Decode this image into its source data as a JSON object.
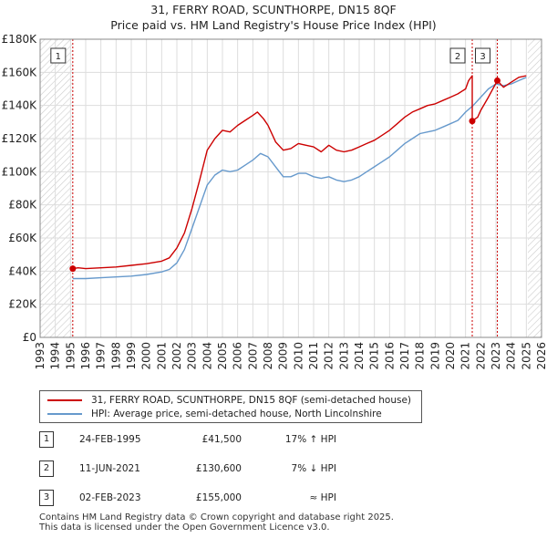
{
  "title_line1": "31, FERRY ROAD, SCUNTHORPE, DN15 8QF",
  "title_line2": "Price paid vs. HM Land Registry's House Price Index (HPI)",
  "colors": {
    "property": "#cc0000",
    "hpi": "#6699cc",
    "hatch": "#cccccc",
    "grid": "#dddddd"
  },
  "chart_data": {
    "type": "line",
    "title": "Price paid vs. HM Land Registry's House Price Index (HPI)",
    "xlabel": "",
    "ylabel": "",
    "xlim": [
      1993,
      2026
    ],
    "ylim": [
      0,
      180000
    ],
    "y_ticks": [
      0,
      20000,
      40000,
      60000,
      80000,
      100000,
      120000,
      140000,
      160000,
      180000
    ],
    "y_tick_labels": [
      "£0",
      "£20K",
      "£40K",
      "£60K",
      "£80K",
      "£100K",
      "£120K",
      "£140K",
      "£160K",
      "£180K"
    ],
    "x_ticks": [
      1993,
      1994,
      1995,
      1996,
      1997,
      1998,
      1999,
      2000,
      2001,
      2002,
      2003,
      2004,
      2005,
      2006,
      2007,
      2008,
      2009,
      2010,
      2011,
      2012,
      2013,
      2014,
      2015,
      2016,
      2017,
      2018,
      2019,
      2020,
      2021,
      2022,
      2023,
      2024,
      2025,
      2026
    ],
    "hatched_regions": [
      [
        1993,
        1995.15
      ],
      [
        2025.1,
        2026
      ]
    ],
    "series": [
      {
        "name": "31, FERRY ROAD, SCUNTHORPE, DN15 8QF (semi-detached house)",
        "color": "#cc0000",
        "x": [
          1995.15,
          1995.5,
          1996,
          1997,
          1998,
          1999,
          2000,
          2001,
          2001.5,
          2002,
          2002.5,
          2003,
          2003.5,
          2004,
          2004.5,
          2005,
          2005.5,
          2006,
          2006.5,
          2007,
          2007.3,
          2007.7,
          2008,
          2008.5,
          2009,
          2009.5,
          2010,
          2010.5,
          2011,
          2011.5,
          2012,
          2012.5,
          2013,
          2013.5,
          2014,
          2014.5,
          2015,
          2015.5,
          2016,
          2016.5,
          2017,
          2017.5,
          2018,
          2018.5,
          2019,
          2019.5,
          2020,
          2020.5,
          2021,
          2021.2,
          2021.44,
          2021.44,
          2021.8,
          2022,
          2022.5,
          2023.09,
          2023.5,
          2024,
          2024.5,
          2025
        ],
        "values": [
          41500,
          42000,
          41500,
          42000,
          42500,
          43500,
          44500,
          46000,
          48000,
          54000,
          63000,
          78000,
          95000,
          113000,
          120000,
          125000,
          124000,
          128000,
          131000,
          134000,
          136000,
          132000,
          128000,
          118000,
          113000,
          114000,
          117000,
          116000,
          115000,
          112000,
          116000,
          113000,
          112000,
          113000,
          115000,
          117000,
          119000,
          122000,
          125000,
          129000,
          133000,
          136000,
          138000,
          140000,
          141000,
          143000,
          145000,
          147000,
          150000,
          155000,
          158000,
          130600,
          133000,
          137000,
          145000,
          155000,
          151000,
          154000,
          157000,
          158000
        ]
      },
      {
        "name": "HPI: Average price, semi-detached house, North Lincolnshire",
        "color": "#6699cc",
        "x": [
          1995.15,
          1996,
          1997,
          1998,
          1999,
          2000,
          2001,
          2001.5,
          2002,
          2002.5,
          2003,
          2003.5,
          2004,
          2004.5,
          2005,
          2005.5,
          2006,
          2006.5,
          2007,
          2007.5,
          2008,
          2008.5,
          2009,
          2009.5,
          2010,
          2010.5,
          2011,
          2011.5,
          2012,
          2012.5,
          2013,
          2013.5,
          2014,
          2014.5,
          2015,
          2015.5,
          2016,
          2016.5,
          2017,
          2017.5,
          2018,
          2018.5,
          2019,
          2019.5,
          2020,
          2020.5,
          2021,
          2021.5,
          2022,
          2022.5,
          2023,
          2023.5,
          2024,
          2024.5,
          2025
        ],
        "values": [
          35500,
          35500,
          36000,
          36500,
          37000,
          38000,
          39500,
          41000,
          45000,
          53000,
          66000,
          79000,
          92000,
          98000,
          101000,
          100000,
          101000,
          104000,
          107000,
          111000,
          109000,
          103000,
          97000,
          97000,
          99000,
          99000,
          97000,
          96000,
          97000,
          95000,
          94000,
          95000,
          97000,
          100000,
          103000,
          106000,
          109000,
          113000,
          117000,
          120000,
          123000,
          124000,
          125000,
          127000,
          129000,
          131000,
          136000,
          140000,
          145000,
          150000,
          153000,
          152000,
          153000,
          155000,
          157000
        ]
      }
    ],
    "sale_markers": [
      {
        "label": "1",
        "x": 1995.15,
        "value": 41500
      },
      {
        "label": "2",
        "x": 2021.44,
        "value": 130600
      },
      {
        "label": "3",
        "x": 2023.09,
        "value": 155000
      }
    ]
  },
  "legend": {
    "property_label": "31, FERRY ROAD, SCUNTHORPE, DN15 8QF (semi-detached house)",
    "hpi_label": "HPI: Average price, semi-detached house, North Lincolnshire"
  },
  "sales": [
    {
      "num": "1",
      "date": "24-FEB-1995",
      "price": "£41,500",
      "relation": "17% ↑ HPI"
    },
    {
      "num": "2",
      "date": "11-JUN-2021",
      "price": "£130,600",
      "relation": "7% ↓ HPI"
    },
    {
      "num": "3",
      "date": "02-FEB-2023",
      "price": "£155,000",
      "relation": "≈ HPI"
    }
  ],
  "footer": {
    "line1": "Contains HM Land Registry data © Crown copyright and database right 2025.",
    "line2": "This data is licensed under the Open Government Licence v3.0."
  }
}
